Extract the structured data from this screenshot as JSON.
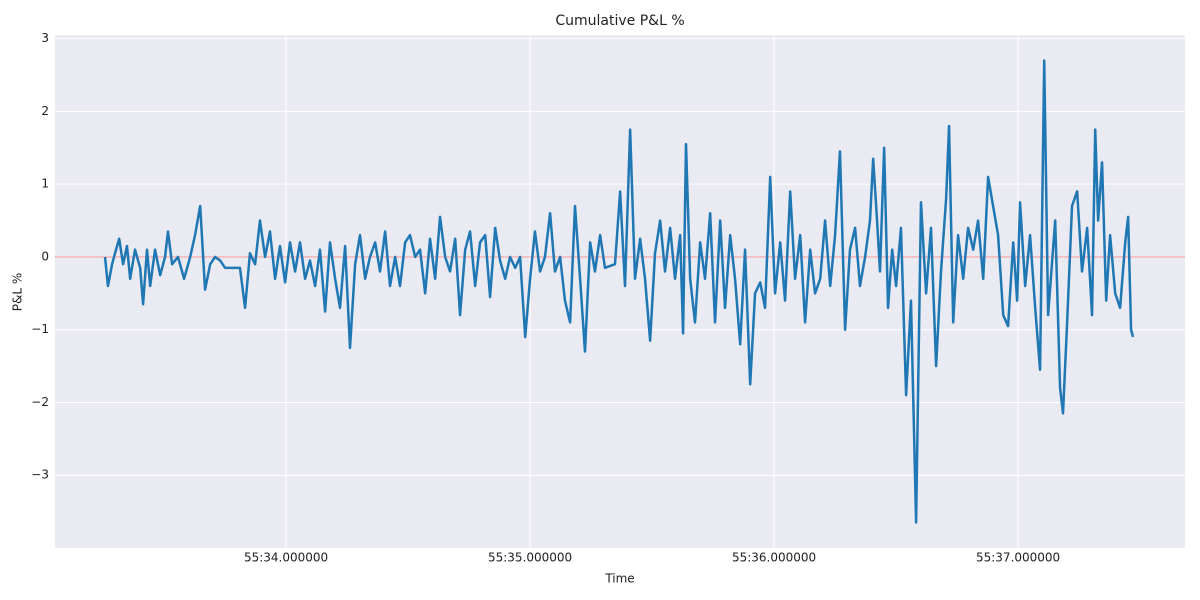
{
  "chart_data": {
    "type": "line",
    "title": "Cumulative P&L %",
    "x_label": "Time",
    "y_label": "P&L %",
    "xlim": [
      33.053,
      37.684
    ],
    "ylim": [
      -4.0,
      3.05
    ],
    "xticks": [
      {
        "value": 34,
        "label": "55:34.000000"
      },
      {
        "value": 35,
        "label": "55:35.000000"
      },
      {
        "value": 36,
        "label": "55:36.000000"
      },
      {
        "value": 37,
        "label": "55:37.000000"
      }
    ],
    "yticks": [
      {
        "value": -3,
        "label": "−3"
      },
      {
        "value": -2,
        "label": "−2"
      },
      {
        "value": -1,
        "label": "−1"
      },
      0,
      1,
      2,
      3
    ],
    "grid": true,
    "hline": 0,
    "hline_color": "#f4a3a3",
    "series": [
      {
        "color": "#1f77b4",
        "x": [
          33.258,
          33.27,
          33.287,
          33.299,
          33.316,
          33.332,
          33.348,
          33.361,
          33.381,
          33.402,
          33.414,
          33.43,
          33.443,
          33.463,
          33.484,
          33.504,
          33.516,
          33.533,
          33.557,
          33.582,
          33.607,
          33.627,
          33.648,
          33.668,
          33.689,
          33.709,
          33.73,
          33.75,
          33.811,
          33.832,
          33.852,
          33.873,
          33.893,
          33.914,
          33.934,
          33.955,
          33.975,
          33.996,
          34.016,
          34.037,
          34.057,
          34.078,
          34.098,
          34.119,
          34.139,
          34.16,
          34.18,
          34.201,
          34.221,
          34.242,
          34.262,
          34.283,
          34.303,
          34.324,
          34.344,
          34.365,
          34.385,
          34.406,
          34.426,
          34.447,
          34.467,
          34.488,
          34.508,
          34.529,
          34.549,
          34.57,
          34.59,
          34.611,
          34.631,
          34.652,
          34.672,
          34.693,
          34.713,
          34.734,
          34.754,
          34.775,
          34.795,
          34.816,
          34.836,
          34.857,
          34.877,
          34.898,
          34.918,
          34.939,
          34.959,
          34.98,
          35.0,
          35.02,
          35.041,
          35.061,
          35.082,
          35.102,
          35.123,
          35.143,
          35.164,
          35.184,
          35.205,
          35.225,
          35.246,
          35.266,
          35.287,
          35.307,
          35.348,
          35.369,
          35.389,
          35.41,
          35.43,
          35.451,
          35.471,
          35.492,
          35.512,
          35.533,
          35.553,
          35.574,
          35.594,
          35.615,
          35.627,
          35.639,
          35.656,
          35.676,
          35.697,
          35.717,
          35.738,
          35.758,
          35.779,
          35.799,
          35.82,
          35.84,
          35.861,
          35.881,
          35.902,
          35.922,
          35.943,
          35.963,
          35.984,
          36.004,
          36.025,
          36.045,
          36.066,
          36.086,
          36.107,
          36.127,
          36.148,
          36.168,
          36.189,
          36.209,
          36.23,
          36.25,
          36.27,
          36.291,
          36.311,
          36.332,
          36.352,
          36.373,
          36.393,
          36.406,
          36.422,
          36.434,
          36.451,
          36.467,
          36.484,
          36.5,
          36.52,
          36.541,
          36.561,
          36.582,
          36.602,
          36.623,
          36.643,
          36.664,
          36.684,
          36.705,
          36.717,
          36.734,
          36.754,
          36.775,
          36.795,
          36.816,
          36.836,
          36.857,
          36.877,
          36.918,
          36.939,
          36.959,
          36.98,
          36.996,
          37.008,
          37.029,
          37.049,
          37.07,
          37.09,
          37.107,
          37.123,
          37.152,
          37.172,
          37.184,
          37.201,
          37.221,
          37.242,
          37.262,
          37.283,
          37.303,
          37.316,
          37.328,
          37.344,
          37.361,
          37.377,
          37.398,
          37.418,
          37.439,
          37.451,
          37.463,
          37.471
        ],
        "values": [
          0,
          -0.4,
          -0.1,
          0.05,
          0.25,
          -0.1,
          0.15,
          -0.3,
          0.1,
          -0.15,
          -0.65,
          0.1,
          -0.4,
          0.1,
          -0.25,
          0,
          0.35,
          -0.1,
          0,
          -0.3,
          0,
          0.3,
          0.7,
          -0.45,
          -0.1,
          0,
          -0.05,
          -0.15,
          -0.15,
          -0.7,
          0.05,
          -0.1,
          0.5,
          0,
          0.35,
          -0.3,
          0.15,
          -0.35,
          0.2,
          -0.2,
          0.2,
          -0.3,
          -0.05,
          -0.4,
          0.1,
          -0.75,
          0.2,
          -0.3,
          -0.7,
          0.15,
          -1.25,
          -0.1,
          0.3,
          -0.3,
          0,
          0.2,
          -0.2,
          0.35,
          -0.4,
          0,
          -0.4,
          0.2,
          0.3,
          0,
          0.1,
          -0.5,
          0.25,
          -0.3,
          0.55,
          0,
          -0.2,
          0.25,
          -0.8,
          0.1,
          0.35,
          -0.4,
          0.2,
          0.3,
          -0.55,
          0.4,
          -0.05,
          -0.3,
          0,
          -0.15,
          0,
          -1.1,
          -0.3,
          0.35,
          -0.2,
          0,
          0.6,
          -0.2,
          0,
          -0.6,
          -0.9,
          0.7,
          -0.3,
          -1.3,
          0.2,
          -0.2,
          0.3,
          -0.15,
          -0.1,
          0.9,
          -0.4,
          1.75,
          -0.3,
          0.25,
          -0.3,
          -1.15,
          0.05,
          0.5,
          -0.2,
          0.4,
          -0.3,
          0.3,
          -1.05,
          1.55,
          -0.3,
          -0.9,
          0.2,
          -0.3,
          0.6,
          -0.9,
          0.5,
          -0.7,
          0.3,
          -0.3,
          -1.2,
          0.1,
          -1.75,
          -0.5,
          -0.35,
          -0.7,
          1.1,
          -0.5,
          0.2,
          -0.6,
          0.9,
          -0.3,
          0.3,
          -0.9,
          0.1,
          -0.5,
          -0.3,
          0.5,
          -0.4,
          0.3,
          1.45,
          -1.0,
          0.1,
          0.4,
          -0.4,
          0,
          0.5,
          1.35,
          0.5,
          -0.2,
          1.5,
          -0.7,
          0.1,
          -0.4,
          0.4,
          -1.9,
          -0.6,
          -3.65,
          0.75,
          -0.5,
          0.4,
          -1.5,
          -0.2,
          0.8,
          1.8,
          -0.9,
          0.3,
          -0.3,
          0.4,
          0.1,
          0.5,
          -0.3,
          1.1,
          0.3,
          -0.8,
          -0.95,
          0.2,
          -0.6,
          0.75,
          -0.4,
          0.3,
          -0.7,
          -1.55,
          2.7,
          -0.8,
          0.5,
          -1.8,
          -2.15,
          -0.9,
          0.7,
          0.9,
          -0.2,
          0.4,
          -0.8,
          1.75,
          0.5,
          1.3,
          -0.6,
          0.3,
          -0.5,
          -0.7,
          0.2,
          0.55,
          -1.0,
          -1.1
        ]
      }
    ]
  }
}
